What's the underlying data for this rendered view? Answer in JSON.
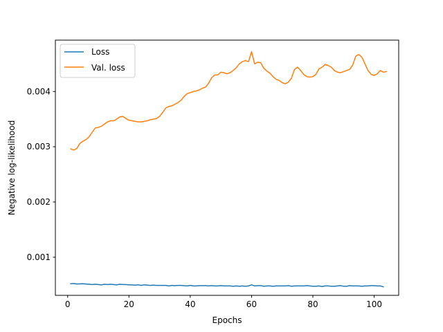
{
  "chart_data": {
    "type": "line",
    "title": "",
    "xlabel": "Epochs",
    "ylabel": "Negative log-likelihood",
    "xlim": [
      -4,
      108
    ],
    "ylim": [
      0.00031,
      0.00493
    ],
    "xticks": [
      0,
      20,
      40,
      60,
      80,
      100
    ],
    "yticks": [
      0.001,
      0.002,
      0.003,
      0.004
    ],
    "ytick_labels": [
      "0.001",
      "0.002",
      "0.003",
      "0.004"
    ],
    "grid": false,
    "legend": "upper-left",
    "series": [
      {
        "name": "Loss",
        "color": "#1f77b4",
        "points": [
          [
            1,
            0.00052
          ],
          [
            2,
            0.000525
          ],
          [
            3,
            0.000515
          ],
          [
            4,
            0.000518
          ],
          [
            5,
            0.00052
          ],
          [
            6,
            0.000515
          ],
          [
            7,
            0.00051
          ],
          [
            8,
            0.000505
          ],
          [
            9,
            0.00051
          ],
          [
            10,
            0.000505
          ],
          [
            11,
            0.0005
          ],
          [
            12,
            0.00051
          ],
          [
            13,
            0.000505
          ],
          [
            14,
            0.00051
          ],
          [
            15,
            0.000505
          ],
          [
            16,
            0.0005
          ],
          [
            17,
            0.00051
          ],
          [
            18,
            0.000505
          ],
          [
            19,
            0.000505
          ],
          [
            20,
            0.0005
          ],
          [
            21,
            0.0005
          ],
          [
            22,
            0.000495
          ],
          [
            23,
            0.0005
          ],
          [
            24,
            0.00049
          ],
          [
            25,
            0.0005
          ],
          [
            26,
            0.000495
          ],
          [
            27,
            0.00049
          ],
          [
            28,
            0.000495
          ],
          [
            29,
            0.00049
          ],
          [
            30,
            0.00049
          ],
          [
            31,
            0.00049
          ],
          [
            32,
            0.00049
          ],
          [
            33,
            0.00048
          ],
          [
            34,
            0.00049
          ],
          [
            35,
            0.000485
          ],
          [
            36,
            0.00049
          ],
          [
            37,
            0.00049
          ],
          [
            38,
            0.000485
          ],
          [
            39,
            0.00048
          ],
          [
            40,
            0.00049
          ],
          [
            41,
            0.00048
          ],
          [
            42,
            0.00048
          ],
          [
            43,
            0.000485
          ],
          [
            44,
            0.000485
          ],
          [
            45,
            0.000485
          ],
          [
            46,
            0.00048
          ],
          [
            47,
            0.000485
          ],
          [
            48,
            0.00048
          ],
          [
            49,
            0.00048
          ],
          [
            50,
            0.000485
          ],
          [
            51,
            0.00048
          ],
          [
            52,
            0.00048
          ],
          [
            53,
            0.00048
          ],
          [
            54,
            0.000475
          ],
          [
            55,
            0.00048
          ],
          [
            56,
            0.000475
          ],
          [
            57,
            0.00048
          ],
          [
            58,
            0.000475
          ],
          [
            59,
            0.00048
          ],
          [
            60,
            0.0005
          ],
          [
            61,
            0.00048
          ],
          [
            62,
            0.000485
          ],
          [
            63,
            0.000485
          ],
          [
            64,
            0.000475
          ],
          [
            65,
            0.00048
          ],
          [
            66,
            0.00048
          ],
          [
            67,
            0.000475
          ],
          [
            68,
            0.00048
          ],
          [
            69,
            0.00048
          ],
          [
            70,
            0.00048
          ],
          [
            71,
            0.00048
          ],
          [
            72,
            0.000485
          ],
          [
            73,
            0.000475
          ],
          [
            74,
            0.00048
          ],
          [
            75,
            0.00048
          ],
          [
            76,
            0.00048
          ],
          [
            77,
            0.00048
          ],
          [
            78,
            0.000485
          ],
          [
            79,
            0.00048
          ],
          [
            80,
            0.000475
          ],
          [
            81,
            0.000475
          ],
          [
            82,
            0.00048
          ],
          [
            83,
            0.00047
          ],
          [
            84,
            0.00048
          ],
          [
            85,
            0.00048
          ],
          [
            86,
            0.000475
          ],
          [
            87,
            0.000475
          ],
          [
            88,
            0.00048
          ],
          [
            89,
            0.000485
          ],
          [
            90,
            0.000475
          ],
          [
            91,
            0.000475
          ],
          [
            92,
            0.000485
          ],
          [
            93,
            0.00048
          ],
          [
            94,
            0.00048
          ],
          [
            95,
            0.00048
          ],
          [
            96,
            0.000475
          ],
          [
            97,
            0.00048
          ],
          [
            98,
            0.00048
          ],
          [
            99,
            0.000485
          ],
          [
            100,
            0.000485
          ],
          [
            101,
            0.00048
          ],
          [
            102,
            0.00048
          ],
          [
            103,
            0.000465
          ]
        ]
      },
      {
        "name": "Val. loss",
        "color": "#ff7f0e",
        "points": [
          [
            1,
            0.00296
          ],
          [
            2,
            0.00294
          ],
          [
            3,
            0.00297
          ],
          [
            4,
            0.00306
          ],
          [
            5,
            0.0031
          ],
          [
            6,
            0.00313
          ],
          [
            7,
            0.00318
          ],
          [
            8,
            0.00326
          ],
          [
            9,
            0.00334
          ],
          [
            10,
            0.00335
          ],
          [
            11,
            0.00337
          ],
          [
            12,
            0.00341
          ],
          [
            13,
            0.00345
          ],
          [
            14,
            0.00347
          ],
          [
            15,
            0.00347
          ],
          [
            16,
            0.0035
          ],
          [
            17,
            0.00354
          ],
          [
            18,
            0.00355
          ],
          [
            19,
            0.00351
          ],
          [
            20,
            0.00348
          ],
          [
            21,
            0.00347
          ],
          [
            22,
            0.00346
          ],
          [
            23,
            0.00345
          ],
          [
            24,
            0.00345
          ],
          [
            25,
            0.00346
          ],
          [
            26,
            0.00347
          ],
          [
            27,
            0.00349
          ],
          [
            28,
            0.0035
          ],
          [
            29,
            0.00351
          ],
          [
            30,
            0.00355
          ],
          [
            31,
            0.00362
          ],
          [
            32,
            0.0037
          ],
          [
            33,
            0.00373
          ],
          [
            34,
            0.00374
          ],
          [
            35,
            0.00377
          ],
          [
            36,
            0.0038
          ],
          [
            37,
            0.00384
          ],
          [
            38,
            0.00391
          ],
          [
            39,
            0.00396
          ],
          [
            40,
            0.00398
          ],
          [
            41,
            0.004
          ],
          [
            42,
            0.00401
          ],
          [
            43,
            0.00403
          ],
          [
            44,
            0.00406
          ],
          [
            45,
            0.00408
          ],
          [
            46,
            0.00415
          ],
          [
            47,
            0.00425
          ],
          [
            48,
            0.0043
          ],
          [
            49,
            0.0043
          ],
          [
            50,
            0.00435
          ],
          [
            51,
            0.00434
          ],
          [
            52,
            0.00432
          ],
          [
            53,
            0.00434
          ],
          [
            54,
            0.00438
          ],
          [
            55,
            0.00443
          ],
          [
            56,
            0.0045
          ],
          [
            57,
            0.00454
          ],
          [
            58,
            0.00456
          ],
          [
            59,
            0.00454
          ],
          [
            60,
            0.00472
          ],
          [
            61,
            0.0045
          ],
          [
            62,
            0.00453
          ],
          [
            63,
            0.00452
          ],
          [
            64,
            0.00442
          ],
          [
            65,
            0.00437
          ],
          [
            66,
            0.00433
          ],
          [
            67,
            0.00427
          ],
          [
            68,
            0.00422
          ],
          [
            69,
            0.0042
          ],
          [
            70,
            0.00416
          ],
          [
            71,
            0.00414
          ],
          [
            72,
            0.00417
          ],
          [
            73,
            0.00424
          ],
          [
            74,
            0.0044
          ],
          [
            75,
            0.00444
          ],
          [
            76,
            0.00438
          ],
          [
            77,
            0.00431
          ],
          [
            78,
            0.00427
          ],
          [
            79,
            0.00426
          ],
          [
            80,
            0.00427
          ],
          [
            81,
            0.00431
          ],
          [
            82,
            0.00441
          ],
          [
            83,
            0.00444
          ],
          [
            84,
            0.00449
          ],
          [
            85,
            0.00447
          ],
          [
            86,
            0.00444
          ],
          [
            87,
            0.00438
          ],
          [
            88,
            0.00435
          ],
          [
            89,
            0.00434
          ],
          [
            90,
            0.00436
          ],
          [
            91,
            0.00438
          ],
          [
            92,
            0.0044
          ],
          [
            93,
            0.00448
          ],
          [
            94,
            0.00464
          ],
          [
            95,
            0.00467
          ],
          [
            96,
            0.00462
          ],
          [
            97,
            0.0045
          ],
          [
            98,
            0.00438
          ],
          [
            99,
            0.00431
          ],
          [
            100,
            0.00429
          ],
          [
            101,
            0.00432
          ],
          [
            102,
            0.00438
          ],
          [
            103,
            0.00435
          ],
          [
            104,
            0.00436
          ]
        ]
      }
    ]
  }
}
